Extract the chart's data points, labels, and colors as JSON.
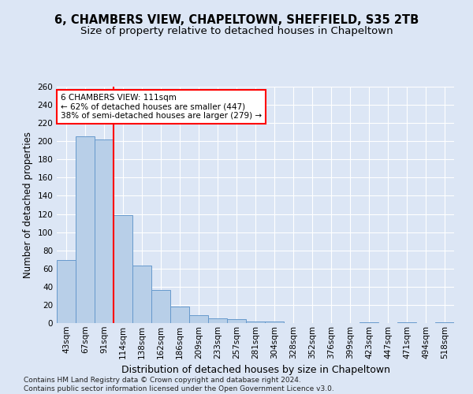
{
  "title1": "6, CHAMBERS VIEW, CHAPELTOWN, SHEFFIELD, S35 2TB",
  "title2": "Size of property relative to detached houses in Chapeltown",
  "xlabel": "Distribution of detached houses by size in Chapeltown",
  "ylabel": "Number of detached properties",
  "footnote": "Contains HM Land Registry data © Crown copyright and database right 2024.\nContains public sector information licensed under the Open Government Licence v3.0.",
  "bar_labels": [
    "43sqm",
    "67sqm",
    "91sqm",
    "114sqm",
    "138sqm",
    "162sqm",
    "186sqm",
    "209sqm",
    "233sqm",
    "257sqm",
    "281sqm",
    "304sqm",
    "328sqm",
    "352sqm",
    "376sqm",
    "399sqm",
    "423sqm",
    "447sqm",
    "471sqm",
    "494sqm",
    "518sqm"
  ],
  "bar_values": [
    69,
    205,
    202,
    119,
    63,
    36,
    18,
    9,
    5,
    4,
    2,
    2,
    0,
    0,
    0,
    0,
    1,
    0,
    1,
    0,
    1
  ],
  "bar_color": "#b8cfe8",
  "bar_edge_color": "#6699cc",
  "ylim": [
    0,
    260
  ],
  "yticks": [
    0,
    20,
    40,
    60,
    80,
    100,
    120,
    140,
    160,
    180,
    200,
    220,
    240,
    260
  ],
  "vline_color": "red",
  "vline_pos": 2.5,
  "annotation_text": "6 CHAMBERS VIEW: 111sqm\n← 62% of detached houses are smaller (447)\n38% of semi-detached houses are larger (279) →",
  "annotation_box_color": "white",
  "annotation_box_edge_color": "red",
  "bg_color": "#dce6f5",
  "plot_bg_color": "#dce6f5",
  "grid_color": "white",
  "title_fontsize": 10.5,
  "subtitle_fontsize": 9.5,
  "tick_fontsize": 7.5,
  "ylabel_fontsize": 8.5,
  "xlabel_fontsize": 9,
  "annotation_fontsize": 7.5,
  "footnote_fontsize": 6.5
}
